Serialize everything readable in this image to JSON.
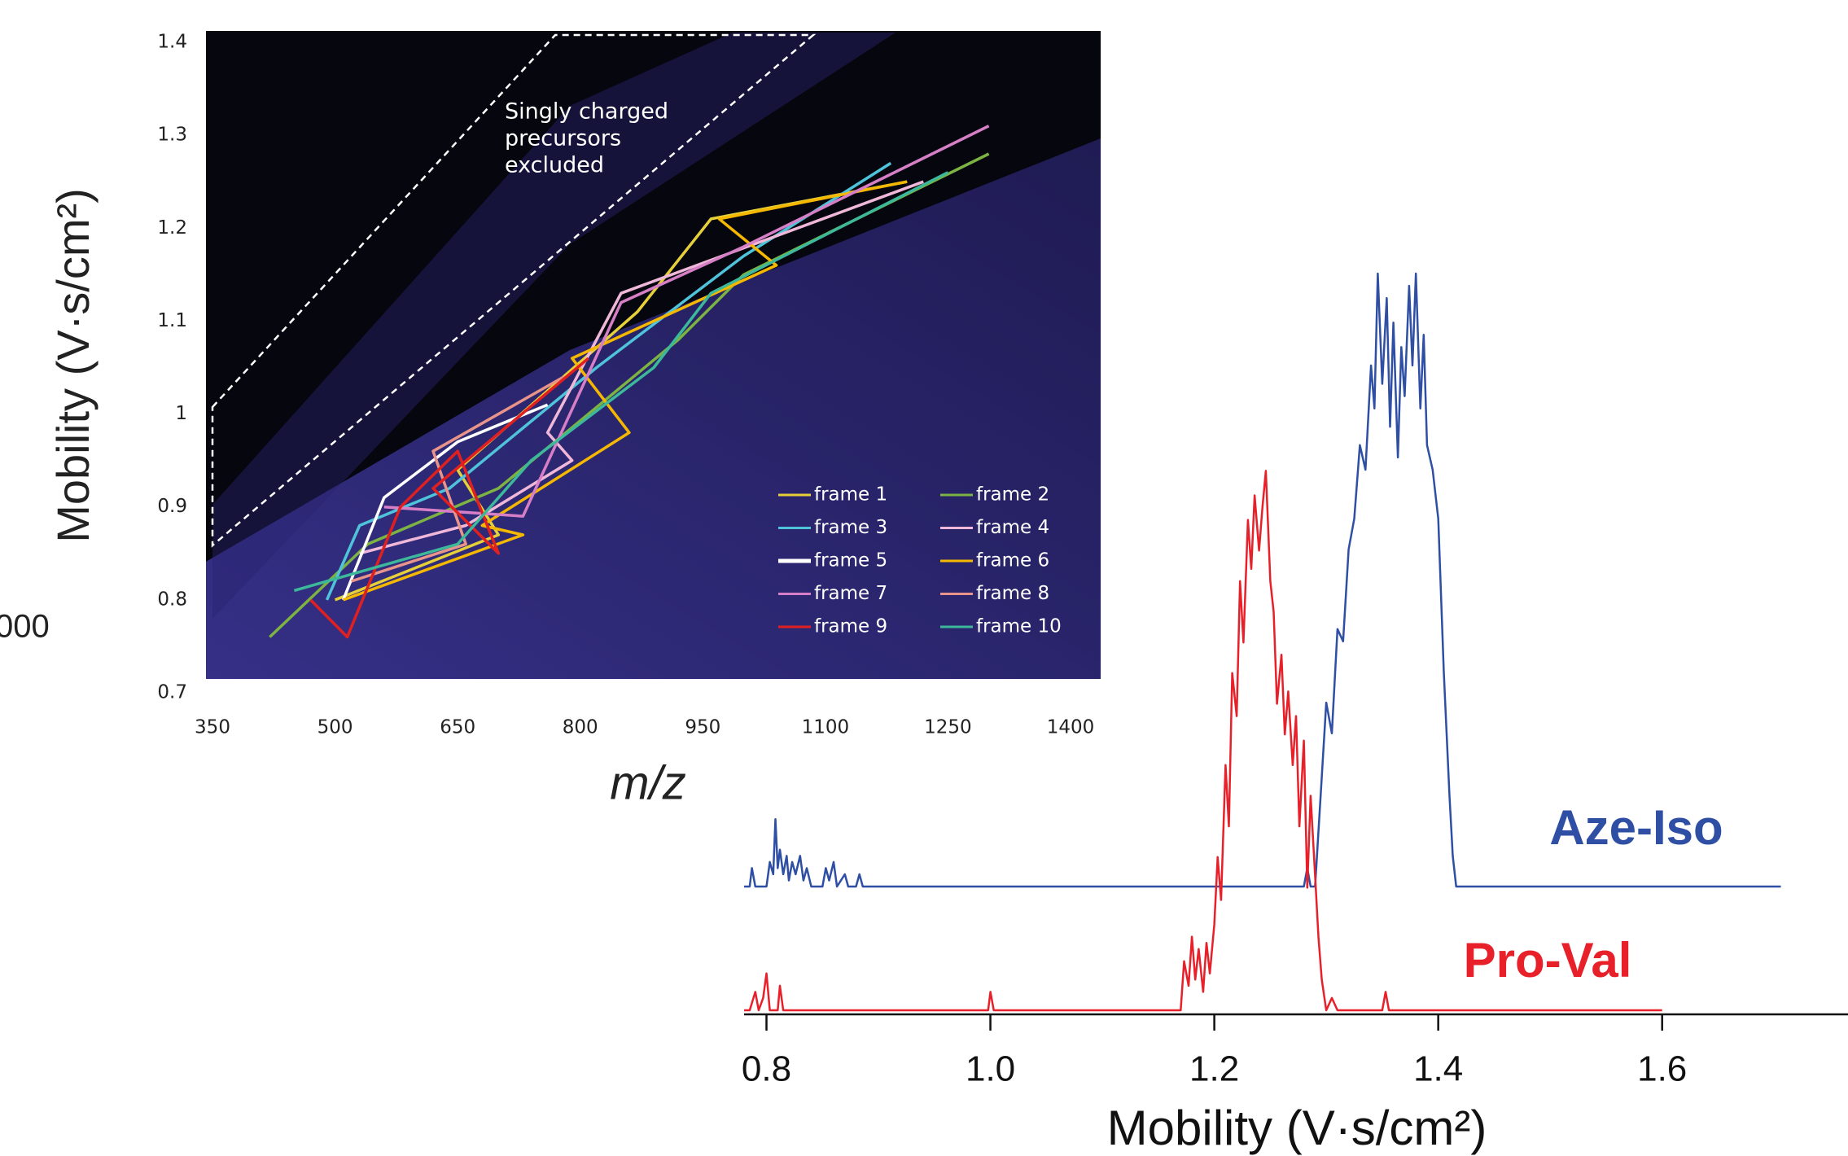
{
  "clipped_label": "000",
  "chart_data": [
    {
      "type": "line",
      "title_axis_x": "m/z",
      "ylabel": "Mobility (V·s/cm²)",
      "annotation": [
        "Singly charged",
        "precursors",
        "excluded"
      ],
      "xlim": [
        350,
        1400
      ],
      "ylim": [
        0.7,
        1.4
      ],
      "xticks": [
        350,
        500,
        650,
        800,
        950,
        1100,
        1250,
        1400
      ],
      "yticks": [
        0.7,
        0.8,
        0.9,
        1,
        1.1,
        1.2,
        1.3,
        1.4
      ],
      "legend": "lower right",
      "series": [
        {
          "name": "frame 1",
          "color": "#e6d03a",
          "x": [
            500,
            700,
            650,
            870,
            960,
            1200
          ],
          "values": [
            0.8,
            0.87,
            0.94,
            1.11,
            1.21,
            1.25
          ]
        },
        {
          "name": "frame 2",
          "color": "#7cb342",
          "x": [
            420,
            540,
            700,
            920,
            1000,
            1300
          ],
          "values": [
            0.76,
            0.86,
            0.92,
            1.08,
            1.15,
            1.28
          ]
        },
        {
          "name": "frame 3",
          "color": "#4fc3d9",
          "x": [
            490,
            530,
            640,
            820,
            1000,
            1180
          ],
          "values": [
            0.8,
            0.88,
            0.92,
            1.05,
            1.17,
            1.27
          ]
        },
        {
          "name": "frame 4",
          "color": "#f0b8d8",
          "x": [
            530,
            660,
            790,
            760,
            850,
            1220
          ],
          "values": [
            0.85,
            0.88,
            0.95,
            0.98,
            1.13,
            1.25
          ]
        },
        {
          "name": "frame 5",
          "color": "#ffffff",
          "x": [
            510,
            560,
            650,
            760
          ],
          "values": [
            0.8,
            0.91,
            0.97,
            1.01
          ]
        },
        {
          "name": "frame 6",
          "color": "#f5b800",
          "x": [
            510,
            730,
            680,
            860,
            790,
            1040,
            970,
            1200
          ],
          "values": [
            0.8,
            0.87,
            0.88,
            0.98,
            1.06,
            1.16,
            1.21,
            1.25
          ]
        },
        {
          "name": "frame 7",
          "color": "#d77fc6",
          "x": [
            560,
            730,
            850,
            1000,
            1300
          ],
          "values": [
            0.9,
            0.89,
            1.12,
            1.18,
            1.31
          ]
        },
        {
          "name": "frame 8",
          "color": "#e8948a",
          "x": [
            520,
            660,
            620,
            780
          ],
          "values": [
            0.82,
            0.86,
            0.96,
            1.04
          ]
        },
        {
          "name": "frame 9",
          "color": "#e02020",
          "x": [
            470,
            515,
            580,
            650,
            700,
            620,
            810
          ],
          "values": [
            0.8,
            0.76,
            0.9,
            0.96,
            0.85,
            0.92,
            1.06
          ]
        },
        {
          "name": "frame 10",
          "color": "#3cb89a",
          "x": [
            450,
            650,
            740,
            890,
            960,
            1250
          ],
          "values": [
            0.81,
            0.86,
            0.95,
            1.05,
            1.13,
            1.26
          ]
        }
      ]
    },
    {
      "type": "line",
      "xlabel": "Mobility (V·s/cm²)",
      "xlim": [
        0.78,
        1.766
      ],
      "xticks": [
        0.8,
        {
          "value": 1.0,
          "label": "1.0"
        },
        1.2,
        1.4,
        1.6
      ],
      "series": [
        {
          "name": "Aze-Iso",
          "color": "#2e4fa3",
          "x": [
            0.78,
            0.785,
            0.787,
            0.79,
            0.8,
            0.803,
            0.806,
            0.808,
            0.81,
            0.812,
            0.815,
            0.818,
            0.82,
            0.823,
            0.826,
            0.83,
            0.833,
            0.836,
            0.84,
            0.85,
            0.853,
            0.856,
            0.86,
            0.863,
            0.87,
            0.873,
            0.88,
            0.883,
            0.886,
            1.28,
            1.283,
            1.286,
            1.29,
            1.295,
            1.3,
            1.305,
            1.31,
            1.315,
            1.32,
            1.325,
            1.33,
            1.335,
            1.34,
            1.343,
            1.346,
            1.35,
            1.354,
            1.357,
            1.36,
            1.364,
            1.367,
            1.37,
            1.374,
            1.377,
            1.38,
            1.384,
            1.387,
            1.39,
            1.395,
            1.4,
            1.405,
            1.41,
            1.413,
            1.416,
            1.706
          ],
          "values": [
            0,
            0,
            3,
            0,
            0,
            4,
            2,
            11,
            3,
            6,
            2,
            5,
            1,
            4,
            2,
            5,
            1,
            3,
            0,
            0,
            3,
            1,
            4,
            0,
            2,
            0,
            0,
            2,
            0,
            0,
            3,
            0,
            0,
            15,
            30,
            25,
            42,
            40,
            55,
            60,
            72,
            68,
            85,
            78,
            100,
            82,
            96,
            75,
            92,
            70,
            88,
            80,
            98,
            85,
            100,
            78,
            90,
            72,
            68,
            60,
            35,
            15,
            5,
            0,
            0
          ]
        },
        {
          "name": "Pro-Val",
          "color": "#e8202a",
          "x": [
            0.78,
            0.785,
            0.79,
            0.793,
            0.797,
            0.8,
            0.803,
            0.81,
            0.812,
            0.815,
            0.998,
            1.0,
            1.003,
            1.17,
            1.173,
            1.177,
            1.18,
            1.183,
            1.186,
            1.19,
            1.193,
            1.196,
            1.2,
            1.203,
            1.206,
            1.21,
            1.213,
            1.216,
            1.22,
            1.223,
            1.226,
            1.23,
            1.233,
            1.236,
            1.24,
            1.243,
            1.246,
            1.25,
            1.253,
            1.256,
            1.26,
            1.263,
            1.266,
            1.27,
            1.273,
            1.276,
            1.28,
            1.283,
            1.286,
            1.29,
            1.293,
            1.296,
            1.3,
            1.305,
            1.31,
            1.35,
            1.353,
            1.356,
            1.6
          ],
          "values": [
            0,
            0,
            3,
            0,
            2,
            6,
            0,
            0,
            4,
            0,
            0,
            3,
            0,
            0,
            8,
            4,
            12,
            5,
            10,
            3,
            11,
            6,
            14,
            25,
            18,
            40,
            30,
            55,
            48,
            70,
            60,
            80,
            72,
            84,
            75,
            82,
            88,
            70,
            65,
            50,
            58,
            45,
            52,
            40,
            48,
            30,
            44,
            20,
            35,
            22,
            12,
            5,
            0,
            2,
            0,
            0,
            3,
            0,
            0
          ]
        }
      ]
    }
  ]
}
